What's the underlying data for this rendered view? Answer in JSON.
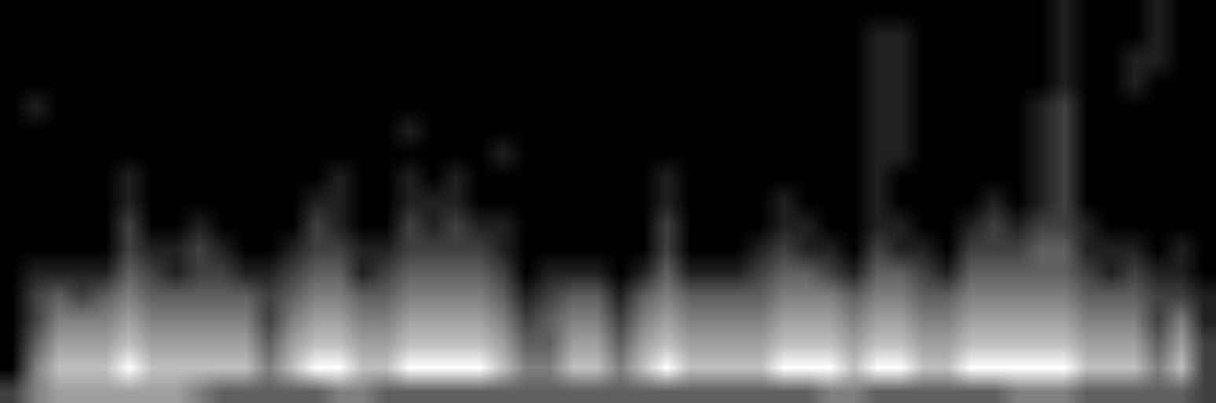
{
  "chart_data": {
    "type": "heatmap",
    "tick_labels": false,
    "grid": false,
    "cells": [
      [
        2,
        4,
        5,
        5,
        5,
        5,
        5,
        5,
        4,
        3,
        3,
        3,
        3,
        3,
        4,
        4,
        3,
        3,
        3,
        3,
        3,
        3,
        3,
        3,
        3,
        3,
        3,
        3,
        3,
        3,
        3,
        3,
        3,
        3,
        3,
        4,
        4,
        3,
        3,
        3,
        3,
        3,
        3,
        4,
        4,
        4,
        3,
        3,
        3,
        3,
        3,
        2
      ],
      [
        0,
        4,
        6,
        6,
        6,
        8,
        6,
        6,
        6,
        6,
        6,
        4,
        6,
        8,
        8,
        6,
        6,
        8,
        8,
        8,
        8,
        6,
        4,
        4,
        6,
        6,
        4,
        6,
        8,
        6,
        6,
        6,
        6,
        8,
        8,
        8,
        6,
        8,
        8,
        6,
        6,
        8,
        8,
        8,
        8,
        8,
        6,
        6,
        6,
        4,
        6,
        2
      ],
      [
        0,
        3,
        5,
        5,
        5,
        6,
        5,
        5,
        5,
        5,
        5,
        3,
        5,
        6,
        6,
        5,
        5,
        6,
        6,
        6,
        6,
        5,
        3,
        3,
        5,
        5,
        3,
        5,
        6,
        5,
        5,
        5,
        5,
        6,
        6,
        6,
        5,
        6,
        6,
        5,
        5,
        6,
        6,
        6,
        6,
        6,
        5,
        5,
        5,
        3,
        5,
        2
      ],
      [
        0,
        2,
        4,
        4,
        4,
        5,
        4,
        4,
        4,
        4,
        4,
        2,
        4,
        5,
        5,
        4,
        4,
        5,
        5,
        5,
        5,
        4,
        2,
        3,
        4,
        4,
        2,
        4,
        5,
        4,
        4,
        4,
        4,
        5,
        5,
        5,
        4,
        5,
        5,
        4,
        4,
        5,
        5,
        5,
        5,
        5,
        4,
        4,
        4,
        2,
        4,
        1
      ],
      [
        0,
        2,
        3,
        2,
        3,
        4,
        3,
        3,
        3,
        3,
        3,
        2,
        3,
        4,
        4,
        3,
        3,
        4,
        4,
        4,
        4,
        3,
        1,
        2,
        3,
        3,
        1,
        3,
        4,
        3,
        3,
        3,
        3,
        4,
        4,
        4,
        3,
        4,
        4,
        3,
        3,
        4,
        4,
        4,
        4,
        4,
        3,
        3,
        3,
        2,
        2,
        1
      ],
      [
        0,
        1,
        1,
        1,
        1,
        3,
        2,
        1,
        2,
        2,
        1,
        1,
        2,
        3,
        3,
        1,
        2,
        3,
        3,
        3,
        3,
        2,
        0,
        1,
        1,
        1,
        0,
        1,
        3,
        1,
        1,
        1,
        2,
        3,
        3,
        2,
        1,
        3,
        3,
        2,
        1,
        3,
        3,
        3,
        3,
        3,
        2,
        1,
        2,
        1,
        1,
        0
      ],
      [
        0,
        0,
        0,
        0,
        0,
        2,
        1,
        1,
        2,
        1,
        0,
        0,
        1,
        2,
        2,
        1,
        1,
        2,
        2,
        2,
        2,
        1,
        0,
        0,
        0,
        0,
        0,
        0,
        2,
        0,
        0,
        0,
        1,
        2,
        1,
        1,
        0,
        2,
        1,
        1,
        0,
        2,
        2,
        2,
        3,
        3,
        1,
        1,
        1,
        0,
        1,
        0
      ],
      [
        0,
        0,
        0,
        0,
        0,
        2,
        0,
        0,
        1,
        0,
        0,
        0,
        0,
        2,
        1,
        0,
        0,
        2,
        1,
        2,
        1,
        1,
        0,
        0,
        0,
        0,
        0,
        0,
        2,
        0,
        0,
        0,
        0,
        1,
        1,
        0,
        0,
        1,
        1,
        0,
        0,
        1,
        2,
        1,
        2,
        2,
        1,
        0,
        0,
        0,
        0,
        0
      ],
      [
        0,
        0,
        0,
        0,
        0,
        1,
        0,
        0,
        0,
        0,
        0,
        0,
        0,
        1,
        1,
        0,
        0,
        1,
        1,
        1,
        0,
        0,
        0,
        0,
        0,
        0,
        0,
        0,
        1,
        0,
        0,
        0,
        0,
        1,
        0,
        0,
        0,
        1,
        0,
        0,
        0,
        0,
        1,
        0,
        1,
        2,
        0,
        0,
        0,
        0,
        0,
        0
      ],
      [
        0,
        0,
        0,
        0,
        0,
        1,
        0,
        0,
        0,
        0,
        0,
        0,
        0,
        0,
        1,
        0,
        0,
        1,
        0,
        1,
        0,
        0,
        0,
        0,
        0,
        0,
        0,
        0,
        1,
        0,
        0,
        0,
        0,
        0,
        0,
        0,
        0,
        1,
        0,
        0,
        0,
        0,
        0,
        0,
        1,
        2,
        0,
        0,
        0,
        0,
        0,
        0
      ],
      [
        0,
        0,
        0,
        0,
        0,
        0,
        0,
        0,
        0,
        0,
        0,
        0,
        0,
        0,
        0,
        0,
        0,
        0,
        0,
        0,
        0,
        1,
        0,
        0,
        0,
        0,
        0,
        0,
        0,
        0,
        0,
        0,
        0,
        0,
        0,
        0,
        0,
        1,
        1,
        0,
        0,
        0,
        0,
        0,
        1,
        2,
        0,
        0,
        0,
        0,
        0,
        0
      ],
      [
        0,
        0,
        0,
        0,
        0,
        0,
        0,
        0,
        0,
        0,
        0,
        0,
        0,
        0,
        0,
        0,
        0,
        1,
        0,
        0,
        0,
        0,
        0,
        0,
        0,
        0,
        0,
        0,
        0,
        0,
        0,
        0,
        0,
        0,
        0,
        0,
        0,
        1,
        1,
        0,
        0,
        0,
        0,
        0,
        1,
        2,
        0,
        0,
        0,
        0,
        0,
        0
      ],
      [
        0,
        1,
        0,
        0,
        0,
        0,
        0,
        0,
        0,
        0,
        0,
        0,
        0,
        0,
        0,
        0,
        0,
        0,
        0,
        0,
        0,
        0,
        0,
        0,
        0,
        0,
        0,
        0,
        0,
        0,
        0,
        0,
        0,
        0,
        0,
        0,
        0,
        1,
        1,
        0,
        0,
        0,
        0,
        0,
        1,
        2,
        0,
        0,
        0,
        0,
        0,
        0
      ],
      [
        0,
        0,
        0,
        0,
        0,
        0,
        0,
        0,
        0,
        0,
        0,
        0,
        0,
        0,
        0,
        0,
        0,
        0,
        0,
        0,
        0,
        0,
        0,
        0,
        0,
        0,
        0,
        0,
        0,
        0,
        0,
        0,
        0,
        0,
        0,
        0,
        0,
        1,
        1,
        0,
        0,
        0,
        0,
        0,
        0,
        1,
        0,
        0,
        1,
        0,
        0,
        0
      ],
      [
        0,
        0,
        0,
        0,
        0,
        0,
        0,
        0,
        0,
        0,
        0,
        0,
        0,
        0,
        0,
        0,
        0,
        0,
        0,
        0,
        0,
        0,
        0,
        0,
        0,
        0,
        0,
        0,
        0,
        0,
        0,
        0,
        0,
        0,
        0,
        0,
        0,
        1,
        1,
        0,
        0,
        0,
        0,
        0,
        0,
        1,
        0,
        0,
        1,
        1,
        0,
        0
      ],
      [
        0,
        0,
        0,
        0,
        0,
        0,
        0,
        0,
        0,
        0,
        0,
        0,
        0,
        0,
        0,
        0,
        0,
        0,
        0,
        0,
        0,
        0,
        0,
        0,
        0,
        0,
        0,
        0,
        0,
        0,
        0,
        0,
        0,
        0,
        0,
        0,
        0,
        1,
        1,
        0,
        0,
        0,
        0,
        0,
        0,
        1,
        0,
        0,
        0,
        1,
        0,
        0
      ],
      [
        0,
        0,
        0,
        0,
        0,
        0,
        0,
        0,
        0,
        0,
        0,
        0,
        0,
        0,
        0,
        0,
        0,
        0,
        0,
        0,
        0,
        0,
        0,
        0,
        0,
        0,
        0,
        0,
        0,
        0,
        0,
        0,
        0,
        0,
        0,
        0,
        0,
        0,
        0,
        0,
        0,
        0,
        0,
        0,
        0,
        1,
        0,
        0,
        0,
        1,
        0,
        0
      ]
    ]
  }
}
